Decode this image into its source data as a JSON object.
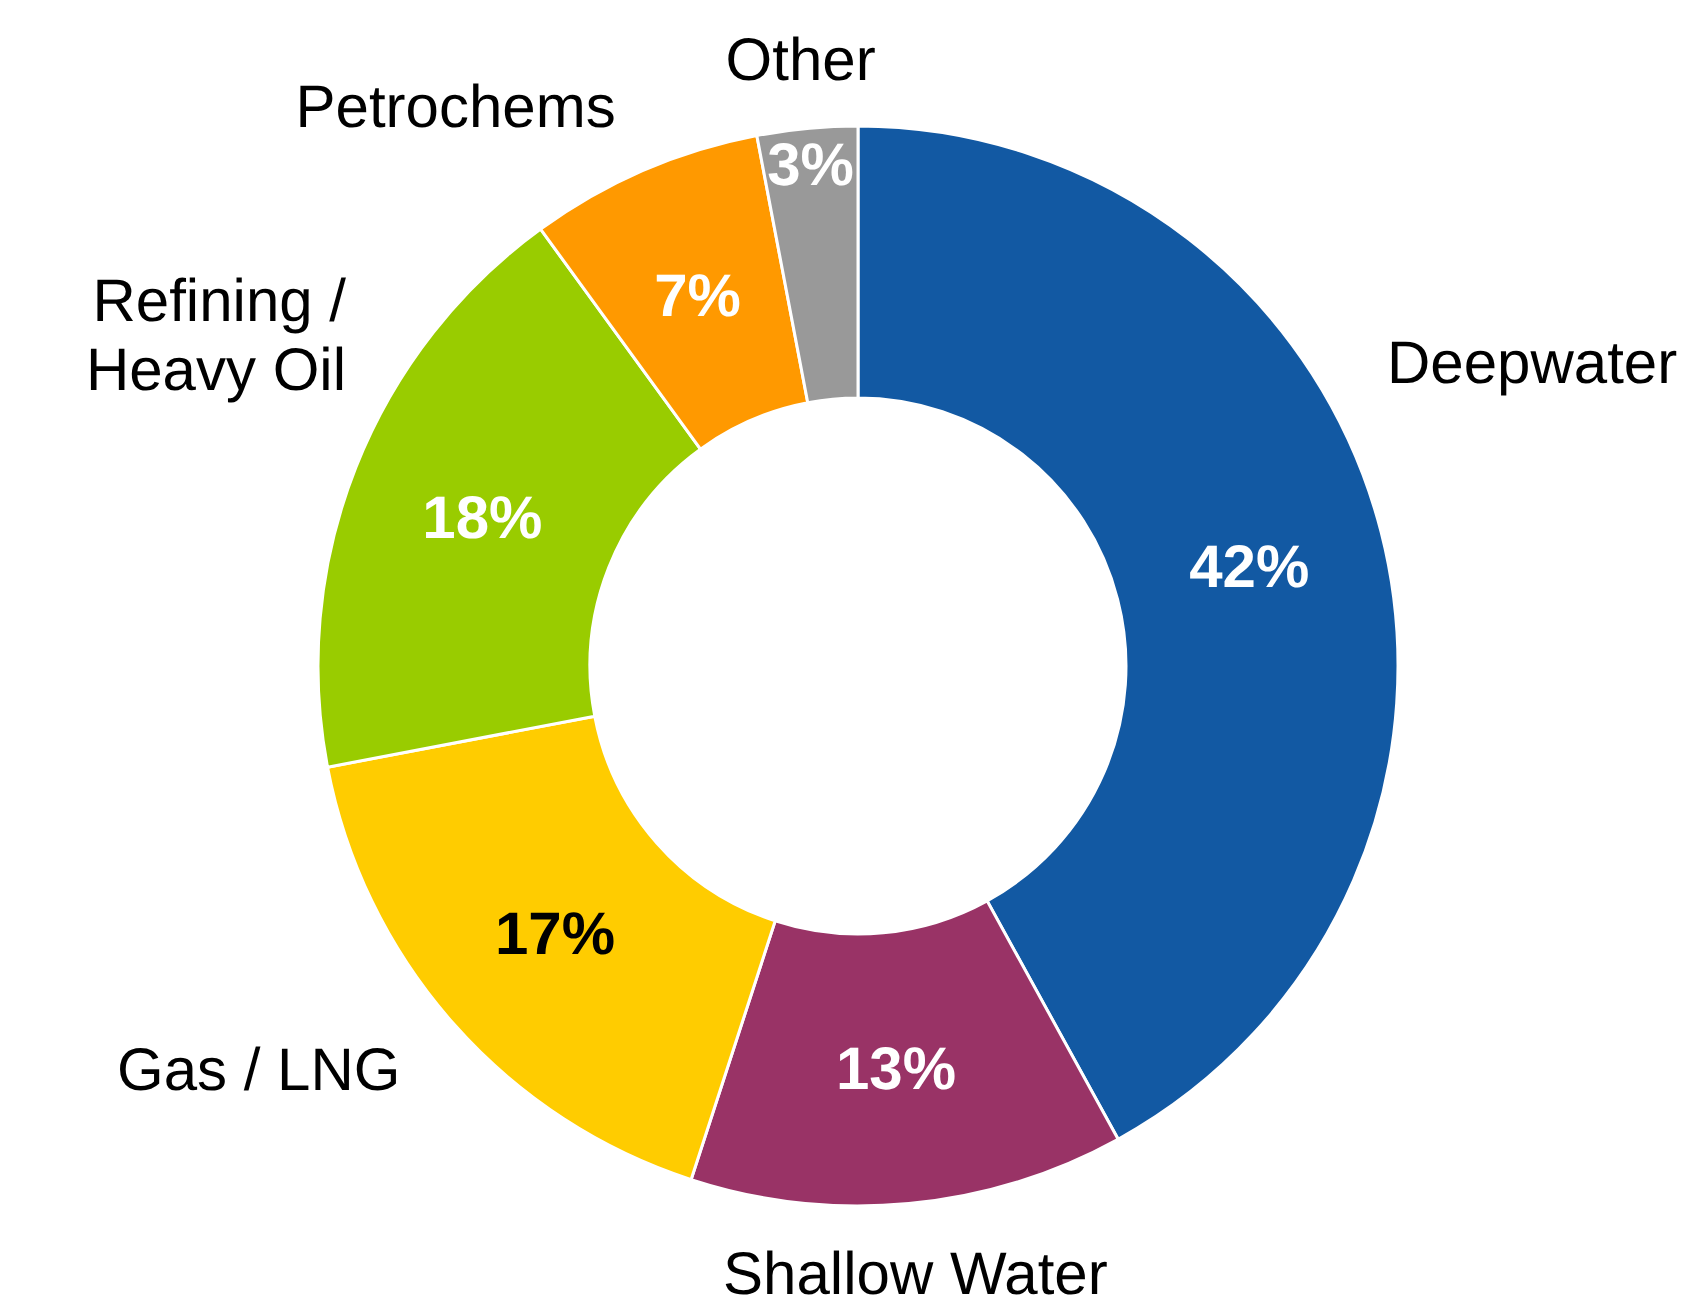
{
  "chart_data": {
    "type": "donut",
    "categories": [
      "Deepwater",
      "Shallow Water",
      "Gas / LNG",
      "Refining /\nHeavy Oil",
      "Petrochems",
      "Other"
    ],
    "values": [
      42,
      13,
      17,
      18,
      7,
      3
    ],
    "value_labels": [
      "42%",
      "13%",
      "17%",
      "18%",
      "7%",
      "3%"
    ],
    "colors": [
      "#1259a3",
      "#993366",
      "#ffcc00",
      "#99cc00",
      "#ff9900",
      "#999999"
    ]
  }
}
